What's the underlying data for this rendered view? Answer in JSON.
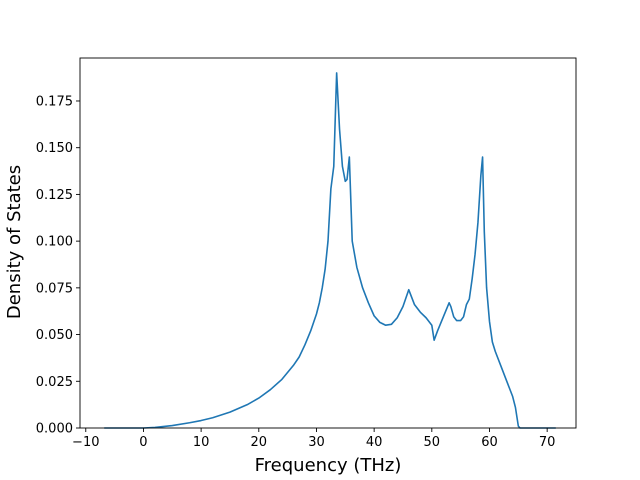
{
  "chart_data": {
    "type": "line",
    "title": "",
    "xlabel": "Frequency (THz)",
    "ylabel": "Density of States",
    "xlim": [
      -11,
      75
    ],
    "ylim": [
      0,
      0.198
    ],
    "grid": false,
    "legend": "none",
    "line_color": "#1f77b4",
    "xticks": [
      -10,
      0,
      10,
      20,
      30,
      40,
      50,
      60,
      70
    ],
    "xtick_labels": [
      "−10",
      "0",
      "10",
      "20",
      "30",
      "40",
      "50",
      "60",
      "70"
    ],
    "yticks": [
      0.0,
      0.025,
      0.05,
      0.075,
      0.1,
      0.125,
      0.15,
      0.175
    ],
    "ytick_labels": [
      "0.000",
      "0.025",
      "0.050",
      "0.075",
      "0.100",
      "0.125",
      "0.150",
      "0.175"
    ],
    "series": [
      {
        "x": [
          -6.8,
          0,
          2,
          5,
          8,
          10,
          12,
          15,
          18,
          20,
          22,
          24,
          26,
          27,
          28,
          29,
          30,
          30.5,
          31,
          31.5,
          32,
          32.5,
          33.0,
          33.5,
          34.0,
          34.5,
          35.0,
          35.3,
          35.7,
          36.2,
          37,
          38,
          39,
          40,
          41,
          42,
          43,
          44,
          45,
          45.5,
          46,
          47,
          48,
          49,
          50,
          50.4,
          51,
          52,
          53,
          53.3,
          53.8,
          54.3,
          55,
          55.5,
          56,
          56.5,
          57,
          57.5,
          58,
          58.5,
          58.8,
          59.1,
          59.5,
          60,
          60.5,
          61,
          62,
          63,
          64,
          64.5,
          65,
          65.3,
          66,
          70,
          71.5
        ],
        "y": [
          0,
          0,
          0.0003,
          0.0013,
          0.0028,
          0.004,
          0.0055,
          0.0085,
          0.0125,
          0.016,
          0.0205,
          0.026,
          0.0335,
          0.038,
          0.0445,
          0.052,
          0.061,
          0.067,
          0.075,
          0.085,
          0.1,
          0.128,
          0.14,
          0.19,
          0.16,
          0.14,
          0.132,
          0.133,
          0.145,
          0.1,
          0.086,
          0.075,
          0.067,
          0.06,
          0.0565,
          0.055,
          0.0555,
          0.059,
          0.065,
          0.0695,
          0.074,
          0.066,
          0.062,
          0.059,
          0.055,
          0.047,
          0.052,
          0.0595,
          0.067,
          0.065,
          0.0595,
          0.0575,
          0.0575,
          0.0595,
          0.066,
          0.069,
          0.08,
          0.093,
          0.11,
          0.135,
          0.145,
          0.105,
          0.075,
          0.057,
          0.046,
          0.041,
          0.033,
          0.025,
          0.017,
          0.011,
          0.001,
          0,
          0,
          0,
          0
        ]
      }
    ]
  }
}
